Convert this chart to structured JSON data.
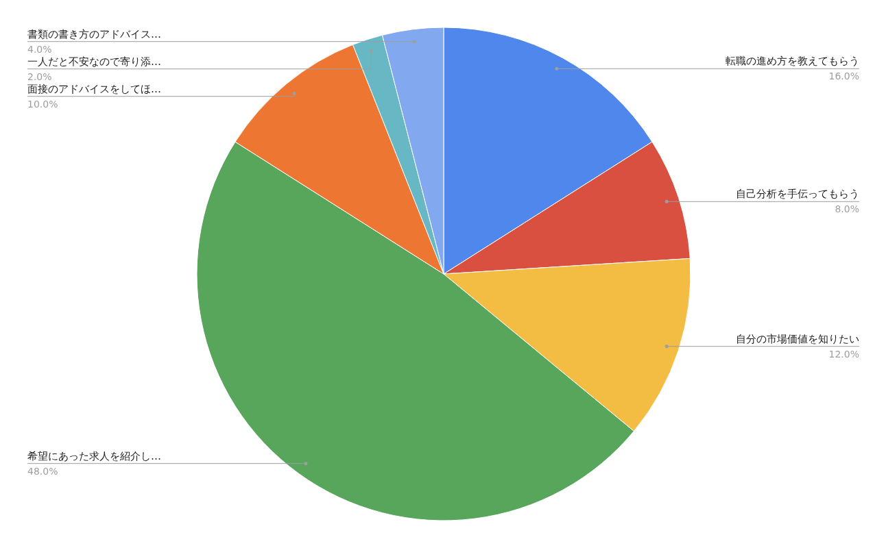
{
  "chart_data": {
    "type": "pie",
    "categories": [
      "転職の進め方を教えてもらう",
      "自己分析を手伝ってもらう",
      "自分の市場価値を知りたい",
      "希望にあった求人を紹介し…",
      "面接のアドバイスをしてほ…",
      "一人だと不安なので寄り添…",
      "書類の書き方のアドバイス…"
    ],
    "values": [
      16,
      8,
      12,
      48,
      10,
      2,
      4
    ],
    "value_labels": [
      "16.0%",
      "8.0%",
      "12.0%",
      "48.0%",
      "10.0%",
      "2.0%",
      "4.0%"
    ],
    "colors": [
      "#5087ec",
      "#d95040",
      "#f2bd42",
      "#58a65c",
      "#ec7632",
      "#67b8c4",
      "#82a8f0"
    ]
  }
}
